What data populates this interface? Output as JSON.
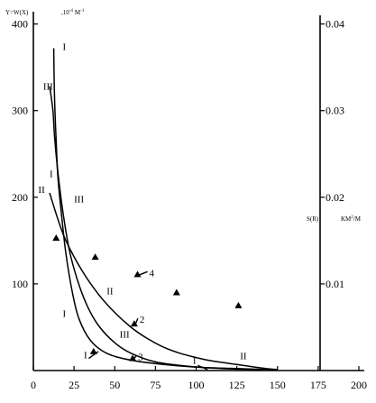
{
  "chart_data": {
    "type": "scatter",
    "ylabel_left": "Y=W(X)",
    "ylabel_left_unit": ",10",
    "ylabel_left_unit_exp": "-4",
    "ylabel_left_unit_tail": "M",
    "ylabel_left_unit_tail_exp": "-1",
    "ylabel_right": "S(R)",
    "ylabel_right_unit": "KM",
    "ylabel_right_unit_exp": "2",
    "ylabel_right_unit_tail": "/M",
    "xlim": [
      0,
      200
    ],
    "ylim_left": [
      0,
      410
    ],
    "ylim_right": [
      0,
      0.041
    ],
    "x_ticks": [
      "0",
      "25",
      "50",
      "75",
      "100",
      "125",
      "150",
      "175",
      "200"
    ],
    "y_left_ticks": [
      "100",
      "200",
      "300",
      "400"
    ],
    "y_right_ticks": [
      "0.01",
      "0.02",
      "0.03",
      "0.04"
    ],
    "grid": false,
    "series": [
      {
        "label": "I",
        "axis": "left",
        "style": "line",
        "points": [
          [
            12.5,
            372
          ],
          [
            13,
            315
          ],
          [
            14,
            265
          ],
          [
            15,
            225
          ],
          [
            17,
            185
          ],
          [
            20,
            135
          ],
          [
            24,
            90
          ],
          [
            28,
            60
          ],
          [
            35,
            35
          ],
          [
            45,
            20
          ],
          [
            60,
            12
          ],
          [
            80,
            7
          ],
          [
            100,
            4
          ],
          [
            130,
            2
          ],
          [
            150,
            1
          ]
        ]
      },
      {
        "label": "II",
        "axis": "left",
        "style": "line",
        "points": [
          [
            10,
            205
          ],
          [
            15,
            175
          ],
          [
            20,
            150
          ],
          [
            30,
            115
          ],
          [
            40,
            88
          ],
          [
            50,
            67
          ],
          [
            60,
            50
          ],
          [
            70,
            37
          ],
          [
            80,
            27
          ],
          [
            90,
            20
          ],
          [
            100,
            15
          ],
          [
            110,
            11
          ],
          [
            125,
            7
          ],
          [
            140,
            3
          ],
          [
            150,
            1
          ]
        ]
      },
      {
        "label": "III",
        "axis": "left",
        "style": "line",
        "points": [
          [
            10,
            328
          ],
          [
            12,
            300
          ],
          [
            13,
            270
          ],
          [
            15,
            230
          ],
          [
            18,
            185
          ],
          [
            22,
            140
          ],
          [
            27,
            105
          ],
          [
            33,
            75
          ],
          [
            40,
            52
          ],
          [
            50,
            32
          ],
          [
            60,
            20
          ],
          [
            75,
            10
          ],
          [
            95,
            5
          ],
          [
            120,
            2
          ],
          [
            150,
            1
          ]
        ]
      },
      {
        "label": "1",
        "axis": "right",
        "style": "markers",
        "points": [
          [
            37,
            0.0022
          ]
        ]
      },
      {
        "label": "2",
        "axis": "right",
        "style": "markers",
        "points": [
          [
            62,
            0.0054
          ]
        ]
      },
      {
        "label": "3",
        "axis": "right",
        "style": "markers",
        "points": [
          [
            61,
            0.0014
          ]
        ]
      },
      {
        "label": "4",
        "axis": "right",
        "style": "markers",
        "points": [
          [
            64,
            0.0111
          ]
        ]
      },
      {
        "label": "",
        "axis": "right",
        "style": "markers",
        "points": [
          [
            14,
            0.0153
          ],
          [
            38,
            0.0131
          ],
          [
            88,
            0.009
          ],
          [
            126,
            0.0075
          ]
        ]
      }
    ],
    "curve_labels": [
      {
        "text": "I",
        "series": "I",
        "x": 18,
        "y": 370
      },
      {
        "text": "III",
        "series": "III",
        "x": 6,
        "y": 324
      },
      {
        "text": "I",
        "series": "I",
        "x": 10,
        "y": 223
      },
      {
        "text": "II",
        "series": "II",
        "x": 3,
        "y": 205
      },
      {
        "text": "III",
        "series": "III",
        "x": 25,
        "y": 194
      },
      {
        "text": "II",
        "series": "II",
        "x": 45,
        "y": 88
      },
      {
        "text": "I",
        "series": "I",
        "x": 18,
        "y": 62
      },
      {
        "text": "III",
        "series": "III",
        "x": 53,
        "y": 38
      },
      {
        "text": "I",
        "series": "I",
        "x": 31,
        "y": 14
      },
      {
        "text": "I",
        "series": "I",
        "x": 98,
        "y": 8
      },
      {
        "text": "II",
        "series": "II",
        "x": 127,
        "y": 13
      }
    ],
    "point_labels": [
      {
        "text": "4",
        "series": "4"
      },
      {
        "text": "2",
        "series": "2"
      },
      {
        "text": "3",
        "series": "3"
      }
    ]
  }
}
